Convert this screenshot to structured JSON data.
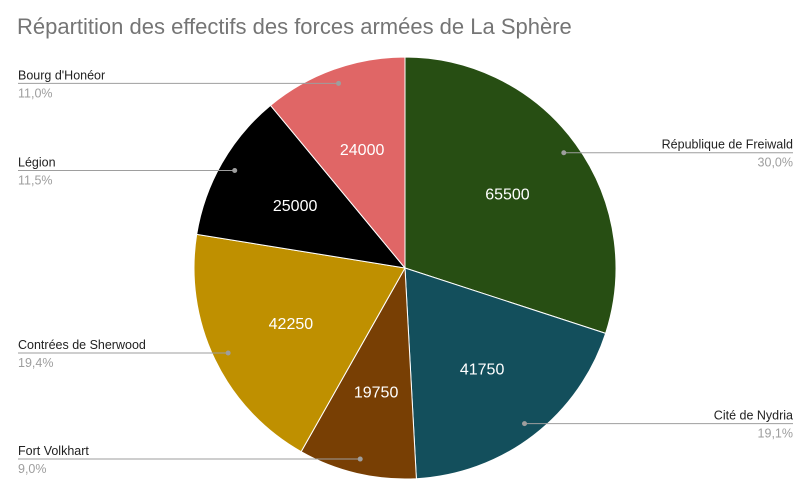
{
  "chart_data": {
    "type": "pie",
    "title": "Répartition des effectifs des forces armées de La Sphère",
    "start": "top",
    "direction": "clockwise",
    "legend": "labeled",
    "slices": [
      {
        "label": "République de Freiwald",
        "value": 65500,
        "percent": "30,0%",
        "color": "#274e13",
        "side": "right"
      },
      {
        "label": "Cité de Nydria",
        "value": 41750,
        "percent": "19,1%",
        "color": "#134f5c",
        "side": "right"
      },
      {
        "label": "Fort Volkhart",
        "value": 19750,
        "percent": "9,0%",
        "color": "#783f04",
        "side": "left"
      },
      {
        "label": "Contrées de Sherwood",
        "value": 42250,
        "percent": "19,4%",
        "color": "#bf9000",
        "side": "left"
      },
      {
        "label": "Légion",
        "value": 25000,
        "percent": "11,5%",
        "color": "#000000",
        "side": "left"
      },
      {
        "label": "Bourg d'Honéor",
        "value": 24000,
        "percent": "11,0%",
        "color": "#e06666",
        "side": "left"
      }
    ]
  }
}
